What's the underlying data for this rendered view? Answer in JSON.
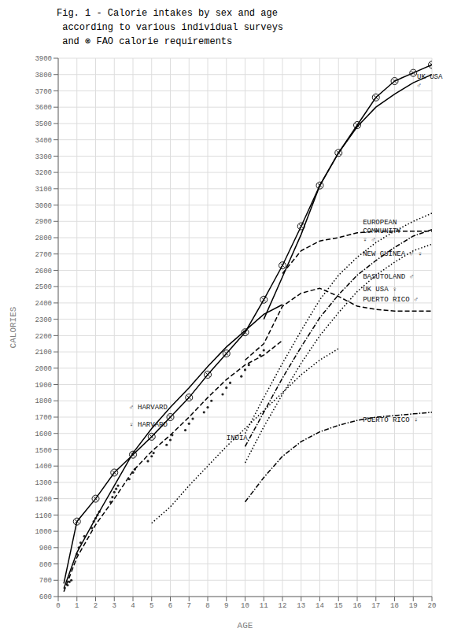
{
  "chart_data": {
    "type": "line",
    "title": "Fig. 1 - Calorie intakes by sex and age\n according to various individual surveys\n and ⊗ FAO calorie requirements",
    "x_label": "AGE",
    "y_label": "CALORIES",
    "xlim": [
      0,
      20
    ],
    "ylim": [
      600,
      3900
    ],
    "xticks": [
      0,
      1,
      2,
      3,
      4,
      5,
      6,
      7,
      8,
      9,
      10,
      11,
      12,
      13,
      14,
      15,
      16,
      17,
      18,
      19,
      20
    ],
    "yticks": [
      600,
      700,
      800,
      900,
      1000,
      1100,
      1200,
      1300,
      1400,
      1500,
      1600,
      1700,
      1800,
      1900,
      2000,
      2100,
      2200,
      2300,
      2400,
      2500,
      2600,
      2700,
      2800,
      2900,
      3000,
      3100,
      3200,
      3300,
      3400,
      3500,
      3600,
      3700,
      3800,
      3900
    ],
    "grid": true,
    "series": [
      {
        "type": "line",
        "color": "black",
        "line_style": "solid",
        "x": [
          0.3,
          1,
          2,
          3,
          4,
          5,
          6,
          7,
          8,
          9,
          10,
          11,
          12,
          13,
          14,
          15,
          16,
          17,
          18,
          19,
          20
        ],
        "values": [
          680,
          1060,
          1200,
          1360,
          1470,
          1580,
          1700,
          1820,
          1960,
          2090,
          2220,
          2420,
          2630,
          2870,
          3120,
          3320,
          3490,
          3660,
          3760,
          3810,
          3860
        ]
      },
      {
        "type": "line",
        "color": "black",
        "line_style": "solid",
        "x": [
          11,
          12,
          13,
          14,
          15,
          16,
          17,
          18,
          19,
          20
        ],
        "values": [
          2300,
          2560,
          2820,
          3120,
          3320,
          3480,
          3600,
          3680,
          3750,
          3800
        ]
      },
      {
        "type": "line",
        "color": "black",
        "line_style": "dashed",
        "x": [
          12,
          13,
          14,
          15,
          16,
          17,
          18,
          19,
          20
        ],
        "values": [
          2580,
          2720,
          2780,
          2800,
          2830,
          2840,
          2840,
          2840,
          2840
        ]
      },
      {
        "type": "line",
        "color": "black",
        "line_style": "dashed",
        "x": [
          10,
          11,
          12,
          13,
          14,
          15,
          16,
          17,
          18,
          19,
          20
        ],
        "values": [
          2050,
          2150,
          2380,
          2460,
          2490,
          2440,
          2380,
          2360,
          2350,
          2350,
          2350
        ]
      },
      {
        "type": "line",
        "color": "black",
        "line_style": "solid",
        "x": [
          0.3,
          1,
          2,
          3,
          4,
          5,
          6,
          7,
          8,
          9,
          10,
          11,
          12
        ],
        "values": [
          650,
          870,
          1080,
          1280,
          1480,
          1630,
          1760,
          1880,
          2010,
          2130,
          2230,
          2330,
          2390
        ]
      },
      {
        "type": "line",
        "color": "black",
        "line_style": "dashed",
        "x": [
          0.3,
          1,
          2,
          3,
          4,
          5,
          6,
          7,
          8,
          9,
          10,
          11,
          12
        ],
        "values": [
          630,
          840,
          1040,
          1200,
          1370,
          1490,
          1590,
          1700,
          1820,
          1930,
          2020,
          2080,
          2170
        ]
      },
      {
        "type": "line",
        "color": "black",
        "line_style": "dotted",
        "x": [
          5,
          6,
          7,
          8,
          9,
          10,
          11,
          12,
          13,
          14,
          15
        ],
        "values": [
          1050,
          1150,
          1280,
          1400,
          1520,
          1630,
          1740,
          1850,
          1960,
          2050,
          2120
        ]
      },
      {
        "type": "line",
        "color": "black",
        "line_style": "dotted",
        "x": [
          10,
          11,
          12,
          13,
          14,
          15,
          16,
          17,
          18,
          19,
          20
        ],
        "values": [
          1600,
          1820,
          2030,
          2230,
          2420,
          2570,
          2680,
          2770,
          2840,
          2900,
          2950
        ]
      },
      {
        "type": "line",
        "color": "black",
        "line_style": "dashdot",
        "x": [
          10,
          11,
          12,
          13,
          14,
          15,
          16,
          17,
          18,
          19,
          20
        ],
        "values": [
          1520,
          1730,
          1940,
          2130,
          2310,
          2450,
          2570,
          2660,
          2740,
          2810,
          2850
        ]
      },
      {
        "type": "line",
        "color": "black",
        "line_style": "dotted",
        "x": [
          10,
          11,
          12,
          13,
          14,
          15,
          16,
          17,
          18,
          19,
          20
        ],
        "values": [
          1420,
          1640,
          1840,
          2030,
          2200,
          2340,
          2470,
          2570,
          2650,
          2720,
          2760
        ]
      },
      {
        "type": "line",
        "color": "black",
        "line_style": "dashdot",
        "x": [
          10,
          11,
          12,
          13,
          14,
          15,
          16,
          17,
          18,
          19,
          20
        ],
        "values": [
          1180,
          1330,
          1460,
          1550,
          1610,
          1650,
          1680,
          1700,
          1710,
          1720,
          1730
        ]
      },
      {
        "type": "scatter",
        "color": "black",
        "marker": "circle_x",
        "x": [
          1,
          2,
          3,
          4,
          5,
          6,
          7,
          8,
          9,
          10,
          11,
          12,
          13,
          14,
          15,
          16,
          17,
          18,
          19,
          20
        ],
        "values": [
          1060,
          1200,
          1360,
          1470,
          1580,
          1700,
          1820,
          1960,
          2090,
          2220,
          2420,
          2630,
          2870,
          3120,
          3320,
          3490,
          3660,
          3760,
          3810,
          3860
        ]
      },
      {
        "type": "scatter",
        "color": "black",
        "marker": "dot",
        "x": [
          0.5,
          0.6,
          0.7,
          1.0,
          1.1,
          1.2,
          1.4,
          1.8,
          1.9,
          2.0,
          2.1,
          2.2,
          2.8,
          2.9,
          3.0,
          3.1,
          3.2,
          3.8,
          4.0,
          4.1,
          4.8,
          5.0,
          5.1,
          5.8,
          6.0,
          6.1,
          6.8,
          7.0,
          7.2,
          7.8,
          8.0,
          8.2,
          8.8,
          9.0,
          9.2,
          9.8,
          10.0,
          10.2,
          10.8,
          11.0
        ],
        "values": [
          670,
          690,
          700,
          860,
          900,
          930,
          970,
          1020,
          1060,
          1080,
          1100,
          1120,
          1180,
          1210,
          1240,
          1260,
          1280,
          1320,
          1360,
          1380,
          1430,
          1460,
          1480,
          1530,
          1560,
          1590,
          1620,
          1660,
          1690,
          1730,
          1760,
          1800,
          1840,
          1880,
          1910,
          1950,
          1990,
          2020,
          2080,
          2110
        ]
      }
    ],
    "annotations": [
      {
        "x": 19.2,
        "y": 3760,
        "text": "UK USA\n♂"
      },
      {
        "x": 16.3,
        "y": 2840,
        "text": "EUROPEAN\nCOMMUNITY\n♀ ♂"
      },
      {
        "x": 16.3,
        "y": 2480,
        "text": "UK USA ♀"
      },
      {
        "x": 3.8,
        "y": 1760,
        "text": "♂ HARVARD"
      },
      {
        "x": 3.8,
        "y": 1650,
        "text": "♀ HARVARD"
      },
      {
        "x": 9.0,
        "y": 1570,
        "text": "INDIA"
      },
      {
        "x": 16.3,
        "y": 2700,
        "text": "NEW GUINEA ♂ ♀"
      },
      {
        "x": 16.3,
        "y": 2560,
        "text": "BASUTOLAND ♂"
      },
      {
        "x": 16.3,
        "y": 2420,
        "text": "PUERTO RICO ♂"
      },
      {
        "x": 16.3,
        "y": 1680,
        "text": "PUERTO RICO ♀"
      }
    ]
  }
}
